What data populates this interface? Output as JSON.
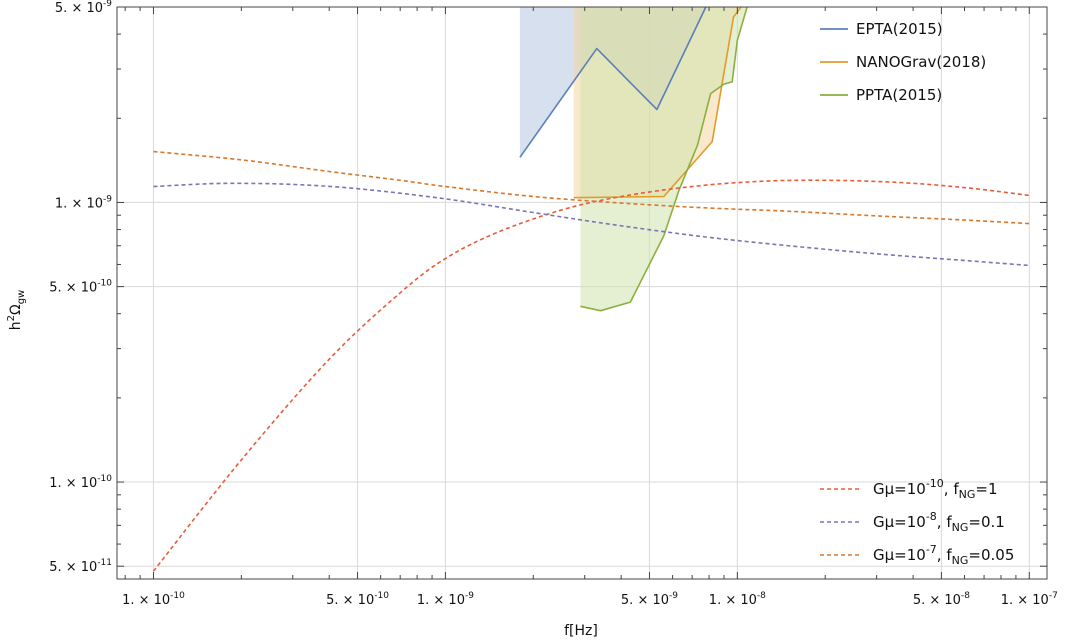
{
  "chart_data": {
    "type": "line",
    "x_scale": "log",
    "y_scale": "log",
    "xlim": [
      7.5e-11,
      1.15e-07
    ],
    "ylim": [
      4.5e-11,
      5e-09
    ],
    "grid": true,
    "xlabel": "f[Hz]",
    "ylabel": "h^2 Ω_gw",
    "ylabel_parts": {
      "base": "h",
      "sup": "2",
      "omega": "Ω",
      "sub": "gw"
    },
    "x_ticks": [
      {
        "value": 1e-10,
        "mant": "1.",
        "exp": "-10"
      },
      {
        "value": 5e-10,
        "mant": "5.",
        "exp": "-10"
      },
      {
        "value": 1e-09,
        "mant": "1.",
        "exp": "-9"
      },
      {
        "value": 5e-09,
        "mant": "5.",
        "exp": "-9"
      },
      {
        "value": 1e-08,
        "mant": "1.",
        "exp": "-8"
      },
      {
        "value": 5e-08,
        "mant": "5.",
        "exp": "-8"
      },
      {
        "value": 1e-07,
        "mant": "1.",
        "exp": "-7"
      }
    ],
    "y_ticks": [
      {
        "value": 5e-11,
        "mant": "5.",
        "exp": "-11"
      },
      {
        "value": 1e-10,
        "mant": "1.",
        "exp": "-10"
      },
      {
        "value": 5e-10,
        "mant": "5.",
        "exp": "-10"
      },
      {
        "value": 1e-09,
        "mant": "1.",
        "exp": "-9"
      },
      {
        "value": 5e-09,
        "mant": "5.",
        "exp": "-9"
      }
    ],
    "sensitivity_curves": [
      {
        "name": "EPTA(2015)",
        "color": "#5b7fb9",
        "fill": "#b4c6e2",
        "x": [
          1.8e-09,
          3.3e-09,
          5.3e-09,
          7.8e-09
        ],
        "y": [
          1.45e-09,
          3.55e-09,
          2.15e-09,
          5.2e-09
        ]
      },
      {
        "name": "NANOGrav(2018)",
        "color": "#e19c2a",
        "fill": "#f5d6a3",
        "x": [
          2.75e-09,
          5.6e-09,
          8.2e-09,
          9.7e-09,
          1.03e-08
        ],
        "y": [
          1.04e-09,
          1.05e-09,
          1.65e-09,
          4.6e-09,
          5.2e-09
        ]
      },
      {
        "name": "PPTA(2015)",
        "color": "#8ab03e",
        "fill": "#d0e2ad",
        "x": [
          2.9e-09,
          3.4e-09,
          4.3e-09,
          5.6e-09,
          6.3e-09,
          7.3e-09,
          8.1e-09,
          9e-09,
          9.6e-09,
          1e-08,
          1.08e-08
        ],
        "y": [
          4.25e-10,
          4.1e-10,
          4.4e-10,
          7.6e-10,
          1.1e-09,
          1.6e-09,
          2.45e-09,
          2.65e-09,
          2.7e-09,
          3.8e-09,
          5.2e-09
        ]
      }
    ],
    "model_curves": [
      {
        "label_main": "Gμ=10",
        "label_exp": "-10",
        "label_rest": ", f",
        "label_sub": "NG",
        "label_end": "=1",
        "color": "#e85c3a",
        "x": [
          1e-10,
          2e-10,
          4e-10,
          7e-10,
          1e-09,
          1.5e-09,
          2.5e-09,
          4e-09,
          7e-09,
          1.2e-08,
          2e-08,
          3.5e-08,
          6e-08,
          1e-07
        ],
        "y": [
          4.8e-11,
          1.2e-10,
          2.75e-10,
          4.75e-10,
          6.3e-10,
          7.8e-10,
          9.4e-10,
          1.05e-09,
          1.14e-09,
          1.19e-09,
          1.2e-09,
          1.18e-09,
          1.13e-09,
          1.06e-09
        ]
      },
      {
        "label_main": "Gμ=10",
        "label_exp": "-8",
        "label_rest": ", f",
        "label_sub": "NG",
        "label_end": "=0.1",
        "color": "#7b76b2",
        "x": [
          1e-10,
          1.5e-10,
          2e-10,
          3e-10,
          5e-10,
          1e-09,
          2e-09,
          4e-09,
          8e-09,
          1.5e-08,
          3e-08,
          6e-08,
          1e-07
        ],
        "y": [
          1.14e-09,
          1.165e-09,
          1.17e-09,
          1.16e-09,
          1.12e-09,
          1.03e-09,
          9.2e-10,
          8.25e-10,
          7.5e-10,
          7e-10,
          6.55e-10,
          6.2e-10,
          5.95e-10
        ]
      },
      {
        "label_main": "Gμ=10",
        "label_exp": "-7",
        "label_rest": ", f",
        "label_sub": "NG",
        "label_end": "=0.05",
        "color": "#d9772b",
        "x": [
          1e-10,
          2e-10,
          4e-10,
          7e-10,
          1e-09,
          2e-09,
          4e-09,
          8e-09,
          1.5e-08,
          3e-08,
          6e-08,
          1e-07
        ],
        "y": [
          1.52e-09,
          1.42e-09,
          1.29e-09,
          1.2e-09,
          1.14e-09,
          1.05e-09,
          9.95e-10,
          9.55e-10,
          9.3e-10,
          8.95e-10,
          8.65e-10,
          8.4e-10
        ]
      }
    ]
  }
}
